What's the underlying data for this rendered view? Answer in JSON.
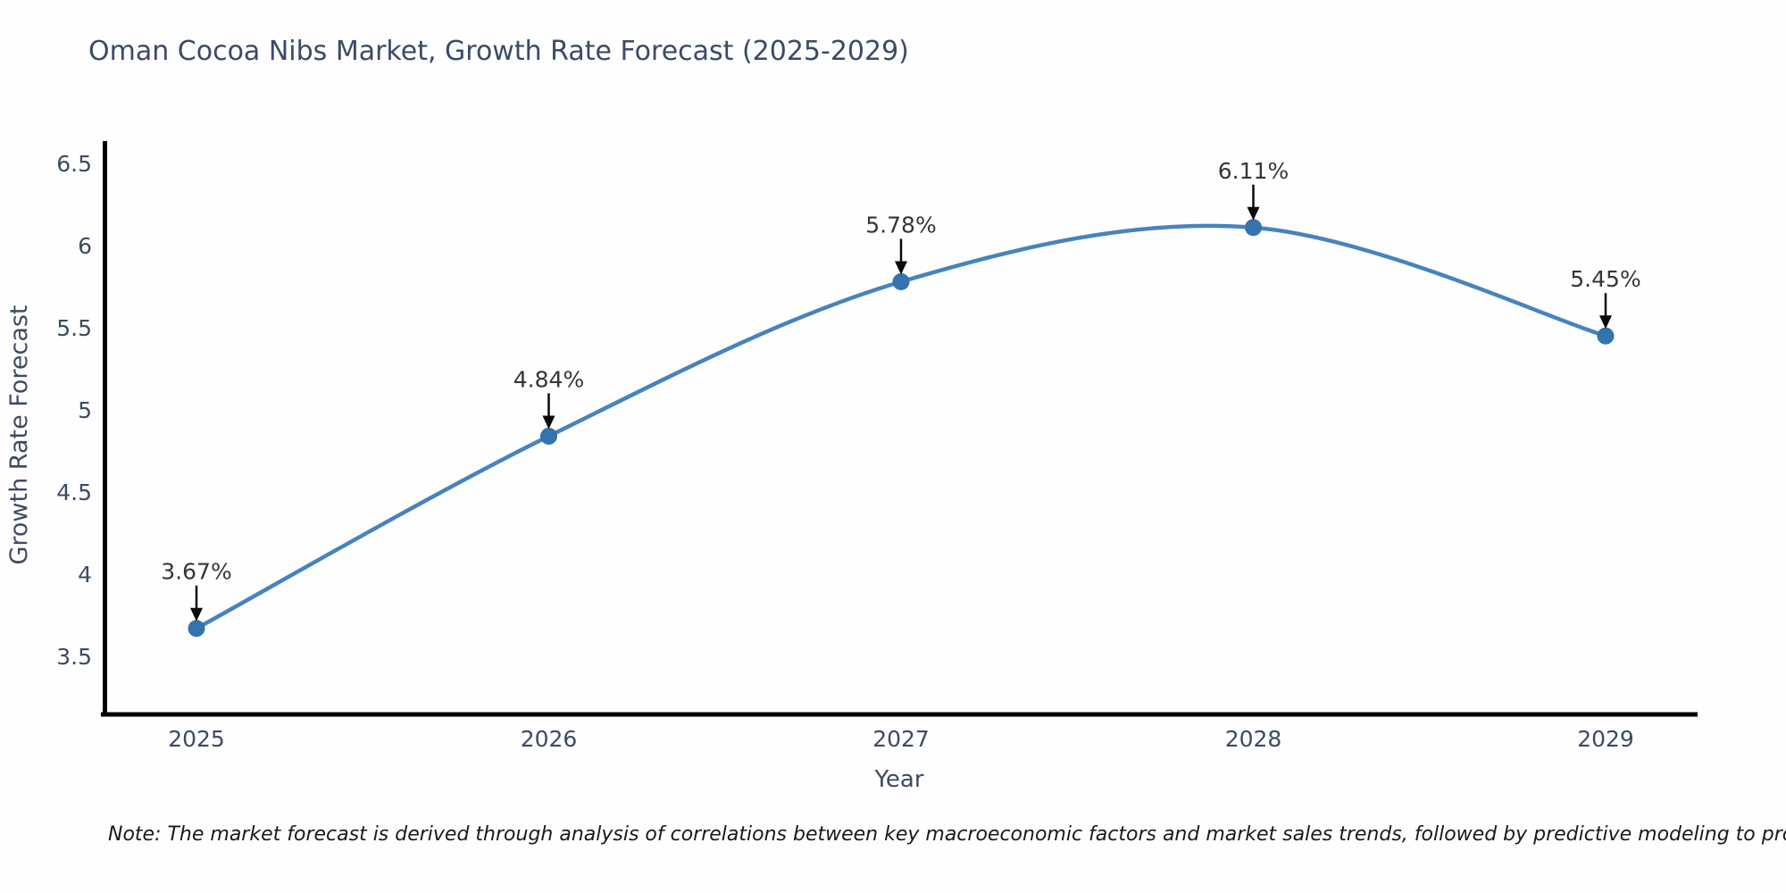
{
  "title": "Oman Cocoa Nibs Market, Growth Rate Forecast (2025-2029)",
  "note": "Note: The market forecast is derived through analysis of correlations between key macroeconomic factors and market sales trends, followed by predictive modeling to project future sales",
  "chart_data": {
    "type": "line",
    "title": "Oman Cocoa Nibs Market, Growth Rate Forecast (2025-2029)",
    "xlabel": "Year",
    "ylabel": "Growth Rate Forecast",
    "categories": [
      "2025",
      "2026",
      "2027",
      "2028",
      "2029"
    ],
    "values": [
      3.67,
      4.84,
      5.78,
      6.11,
      5.45
    ],
    "point_labels": [
      "3.67%",
      "4.84%",
      "5.78%",
      "6.11%",
      "5.45%"
    ],
    "ytick_labels": [
      "3.5",
      "4",
      "4.5",
      "5",
      "5.5",
      "6",
      "6.5"
    ],
    "ytick_values": [
      3.5,
      4,
      4.5,
      5,
      5.5,
      6,
      6.5
    ],
    "ylim": [
      3.15,
      6.63
    ],
    "grid": false,
    "legend": false,
    "line_style": "smooth-spline",
    "marker_style": "filled-circle",
    "annotation_style": "value-label-with-down-arrow",
    "colors": {
      "line": "#4783bd",
      "marker": "#3373ae",
      "annotation_text": "#363636",
      "arrow": "#0a0a0a",
      "axis_spine": "#000000",
      "tick_label": "#3d4a63",
      "title": "#3b4a66",
      "note_text": "#1a1a1a",
      "background": "#fefefe"
    }
  }
}
